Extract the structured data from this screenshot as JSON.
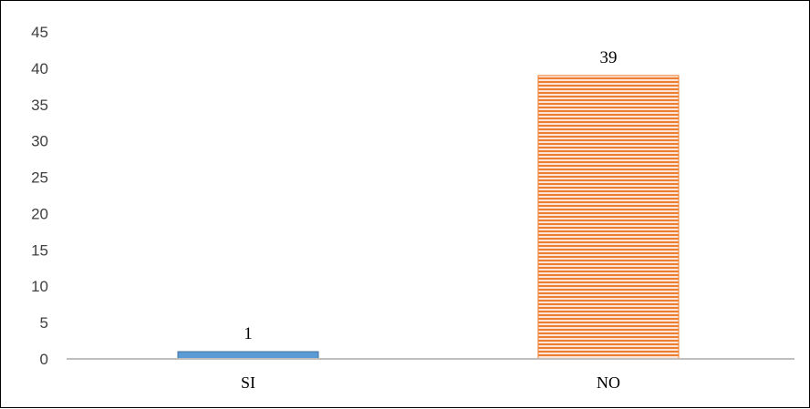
{
  "chart_data": {
    "type": "bar",
    "categories": [
      "SI",
      "NO"
    ],
    "values": [
      1,
      39
    ],
    "data_labels": [
      "1",
      "39"
    ],
    "ylim": [
      0,
      45
    ],
    "yticks": [
      0,
      5,
      10,
      15,
      20,
      25,
      30,
      35,
      40,
      45
    ],
    "grid": false,
    "legend": "none",
    "colors": {
      "bar_si": "#5b9bd5",
      "bar_si_stroke": "#41719c",
      "bar_no_base": "#fbe5d6",
      "bar_no_stripe": "#ed7d31",
      "axis": "#bfbfbf"
    }
  }
}
